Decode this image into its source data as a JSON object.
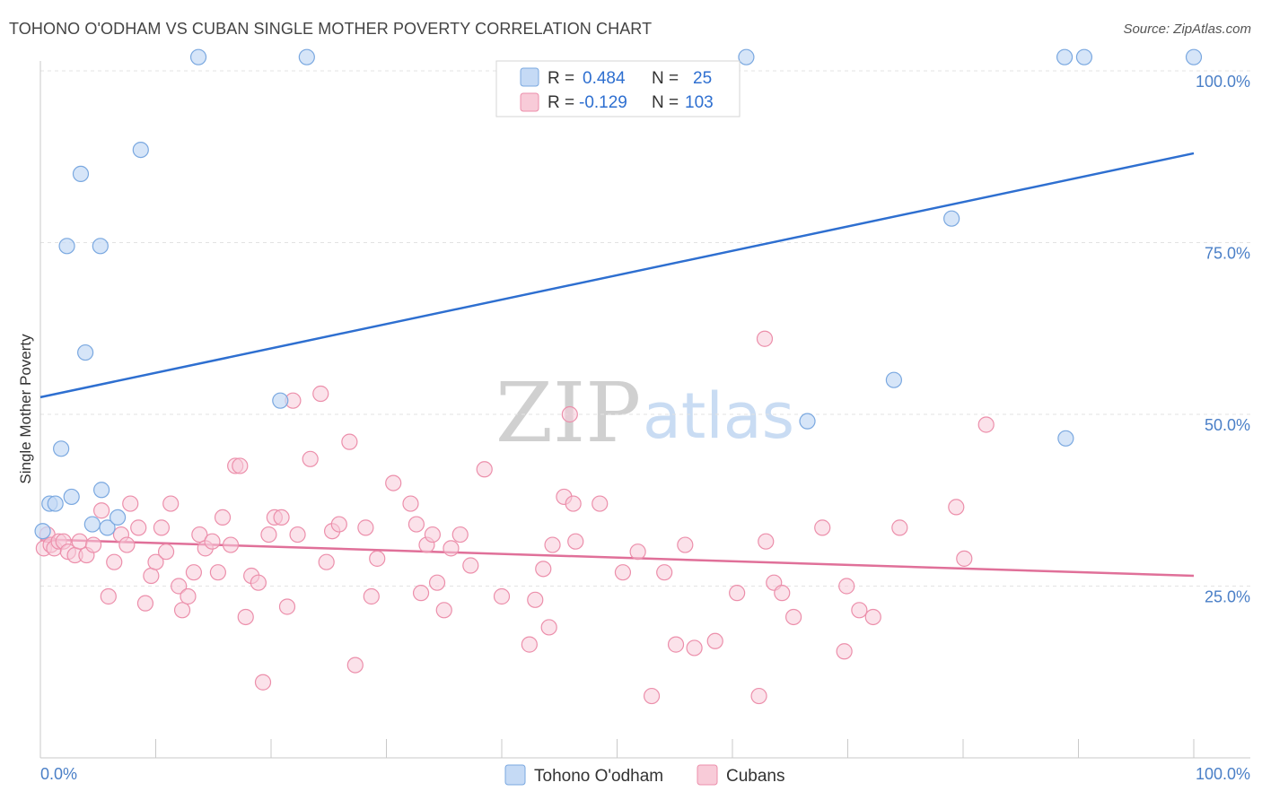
{
  "header": {
    "title": "TOHONO O'ODHAM VS CUBAN SINGLE MOTHER POVERTY CORRELATION CHART",
    "source": "Source: ZipAtlas.com"
  },
  "watermark": {
    "zip": "ZIP",
    "atlas": "atlas"
  },
  "legend": {
    "rows": [
      {
        "r_label": "R =",
        "r_value": "0.484",
        "n_label": "N =",
        "n_value": "25"
      },
      {
        "r_label": "R =",
        "r_value": "-0.129",
        "n_label": "N =",
        "n_value": "103"
      }
    ]
  },
  "colors": {
    "blue_fill": "#c5daf5",
    "blue_stroke": "#7aa8e0",
    "blue_line": "#2e6fd0",
    "pink_fill": "#f8cbd8",
    "pink_stroke": "#ec8fab",
    "pink_line": "#e07099"
  },
  "chart_data": {
    "type": "scatter",
    "title": "TOHONO O'ODHAM VS CUBAN SINGLE MOTHER POVERTY CORRELATION CHART",
    "xlabel": "",
    "ylabel": "Single Mother Poverty",
    "xlim": [
      0,
      100
    ],
    "ylim": [
      0,
      100
    ],
    "x_tick_labels": [
      "0.0%",
      "100.0%"
    ],
    "y_ticks": [
      {
        "value": 25,
        "label": "25.0%"
      },
      {
        "value": 50,
        "label": "50.0%"
      },
      {
        "value": 75,
        "label": "75.0%"
      },
      {
        "value": 100,
        "label": "100.0%"
      }
    ],
    "grid": true,
    "legend_position": "top-center",
    "series": [
      {
        "name": "Tohono O'odham",
        "R": 0.484,
        "N": 25,
        "trend": {
          "x0": 0,
          "y0": 52.5,
          "x1": 100,
          "y1": 88
        },
        "points": [
          [
            0.2,
            33
          ],
          [
            0.8,
            37
          ],
          [
            1.3,
            37
          ],
          [
            1.8,
            45
          ],
          [
            2.3,
            74.5
          ],
          [
            2.7,
            38
          ],
          [
            3.5,
            85
          ],
          [
            3.9,
            59
          ],
          [
            4.5,
            34
          ],
          [
            5.2,
            74.5
          ],
          [
            5.3,
            39
          ],
          [
            5.8,
            33.5
          ],
          [
            6.7,
            35
          ],
          [
            8.7,
            88.5
          ],
          [
            13.7,
            102
          ],
          [
            23.1,
            102
          ],
          [
            20.8,
            52
          ],
          [
            61.2,
            102
          ],
          [
            66.5,
            49
          ],
          [
            74.0,
            55
          ],
          [
            79.0,
            78.5
          ],
          [
            88.8,
            102
          ],
          [
            88.9,
            46.5
          ],
          [
            90.5,
            102
          ],
          [
            100,
            102
          ]
        ]
      },
      {
        "name": "Cubans",
        "R": -0.129,
        "N": 103,
        "trend": {
          "x0": 0,
          "y0": 31.8,
          "x1": 100,
          "y1": 26.5
        },
        "points": [
          [
            0.3,
            30.5
          ],
          [
            0.6,
            32.5
          ],
          [
            0.9,
            31
          ],
          [
            1.2,
            30.5
          ],
          [
            1.6,
            31.5
          ],
          [
            2.0,
            31.5
          ],
          [
            2.4,
            30
          ],
          [
            3.0,
            29.5
          ],
          [
            3.4,
            31.5
          ],
          [
            4.0,
            29.5
          ],
          [
            4.6,
            31
          ],
          [
            5.3,
            36
          ],
          [
            5.9,
            23.5
          ],
          [
            6.4,
            28.5
          ],
          [
            7.0,
            32.5
          ],
          [
            7.5,
            31
          ],
          [
            7.8,
            37
          ],
          [
            8.5,
            33.5
          ],
          [
            9.1,
            22.5
          ],
          [
            9.6,
            26.5
          ],
          [
            10.0,
            28.5
          ],
          [
            10.5,
            33.5
          ],
          [
            10.9,
            30
          ],
          [
            11.3,
            37
          ],
          [
            12.0,
            25
          ],
          [
            12.3,
            21.5
          ],
          [
            12.8,
            23.5
          ],
          [
            13.3,
            27
          ],
          [
            13.8,
            32.5
          ],
          [
            14.3,
            30.5
          ],
          [
            14.9,
            31.5
          ],
          [
            15.4,
            27
          ],
          [
            15.8,
            35
          ],
          [
            16.5,
            31
          ],
          [
            16.9,
            42.5
          ],
          [
            17.3,
            42.5
          ],
          [
            17.8,
            20.5
          ],
          [
            18.3,
            26.5
          ],
          [
            18.9,
            25.5
          ],
          [
            19.3,
            11
          ],
          [
            19.8,
            32.5
          ],
          [
            20.3,
            35
          ],
          [
            20.9,
            35
          ],
          [
            21.4,
            22
          ],
          [
            21.9,
            52
          ],
          [
            22.3,
            32.5
          ],
          [
            23.4,
            43.5
          ],
          [
            24.3,
            53
          ],
          [
            24.8,
            28.5
          ],
          [
            25.3,
            33
          ],
          [
            25.9,
            34
          ],
          [
            26.8,
            46
          ],
          [
            27.3,
            13.5
          ],
          [
            28.2,
            33.5
          ],
          [
            28.7,
            23.5
          ],
          [
            29.2,
            29
          ],
          [
            30.6,
            40
          ],
          [
            32.1,
            37
          ],
          [
            32.6,
            34
          ],
          [
            33.0,
            24
          ],
          [
            33.5,
            31
          ],
          [
            34.0,
            32.5
          ],
          [
            34.4,
            25.5
          ],
          [
            35.0,
            21.5
          ],
          [
            35.6,
            30.5
          ],
          [
            36.4,
            32.5
          ],
          [
            37.3,
            28
          ],
          [
            38.5,
            42
          ],
          [
            40.0,
            23.5
          ],
          [
            42.4,
            16.5
          ],
          [
            42.9,
            23
          ],
          [
            43.6,
            27.5
          ],
          [
            44.1,
            19
          ],
          [
            44.4,
            31
          ],
          [
            45.4,
            38
          ],
          [
            45.9,
            50
          ],
          [
            46.2,
            37
          ],
          [
            46.4,
            31.5
          ],
          [
            48.5,
            37
          ],
          [
            50.5,
            27
          ],
          [
            51.8,
            30
          ],
          [
            53.0,
            9
          ],
          [
            54.1,
            27
          ],
          [
            55.1,
            16.5
          ],
          [
            55.9,
            31
          ],
          [
            56.7,
            16
          ],
          [
            58.5,
            17
          ],
          [
            60.4,
            24
          ],
          [
            62.3,
            9
          ],
          [
            62.8,
            61
          ],
          [
            62.9,
            31.5
          ],
          [
            63.6,
            25.5
          ],
          [
            64.3,
            24
          ],
          [
            65.3,
            20.5
          ],
          [
            67.8,
            33.5
          ],
          [
            69.7,
            15.5
          ],
          [
            69.9,
            25
          ],
          [
            71.0,
            21.5
          ],
          [
            72.2,
            20.5
          ],
          [
            74.5,
            33.5
          ],
          [
            79.4,
            36.5
          ],
          [
            80.1,
            29
          ],
          [
            82.0,
            48.5
          ]
        ]
      }
    ]
  },
  "bottom_legend": {
    "items": [
      {
        "label": "Tohono O'odham"
      },
      {
        "label": "Cubans"
      }
    ]
  }
}
